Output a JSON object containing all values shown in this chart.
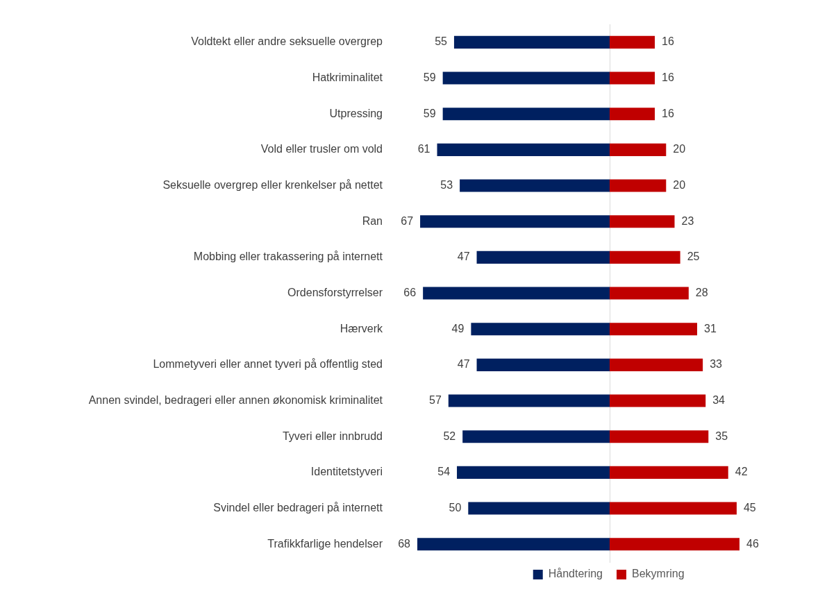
{
  "chart_data": [
    {
      "type": "bar",
      "orientation": "horizontal",
      "categories": [
        "Voldtekt eller andre seksuelle overgrep",
        "Hatkriminalitet",
        "Utpressing",
        "Vold eller trusler om vold",
        "Seksuelle overgrep eller krenkelser på nettet",
        "Ran",
        "Mobbing eller trakassering på internett",
        "Ordensforstyrrelser",
        "Hærverk",
        "Lommetyveri eller annet tyveri på offentlig sted",
        "Annen svindel, bedrageri eller annen økonomisk kriminalitet",
        "Tyveri eller innbrudd",
        "Identitetstyveri",
        "Svindel eller bedrageri på internett",
        "Trafikkfarlige hendelser"
      ],
      "series": [
        {
          "name": "Håndtering",
          "color": "#002060",
          "values": [
            55,
            59,
            59,
            61,
            53,
            67,
            47,
            66,
            49,
            47,
            57,
            52,
            54,
            50,
            68
          ]
        }
      ],
      "xlim": [
        68,
        0
      ],
      "data_labels": true,
      "tick_labels": "y",
      "grid": false,
      "legend": "bottom right"
    },
    {
      "type": "bar",
      "orientation": "horizontal",
      "categories": [
        null,
        null,
        null,
        null,
        null,
        null,
        null,
        null,
        null,
        null,
        null,
        null,
        null,
        null,
        null
      ],
      "series": [
        {
          "name": "Bekymring",
          "color": "#c00000",
          "values": [
            16,
            16,
            16,
            20,
            20,
            23,
            25,
            28,
            31,
            33,
            34,
            35,
            42,
            45,
            46
          ]
        }
      ],
      "xlim": [
        0,
        46
      ],
      "data_labels": true,
      "tick_labels": false,
      "grid": false,
      "legend": "bottom left"
    }
  ]
}
